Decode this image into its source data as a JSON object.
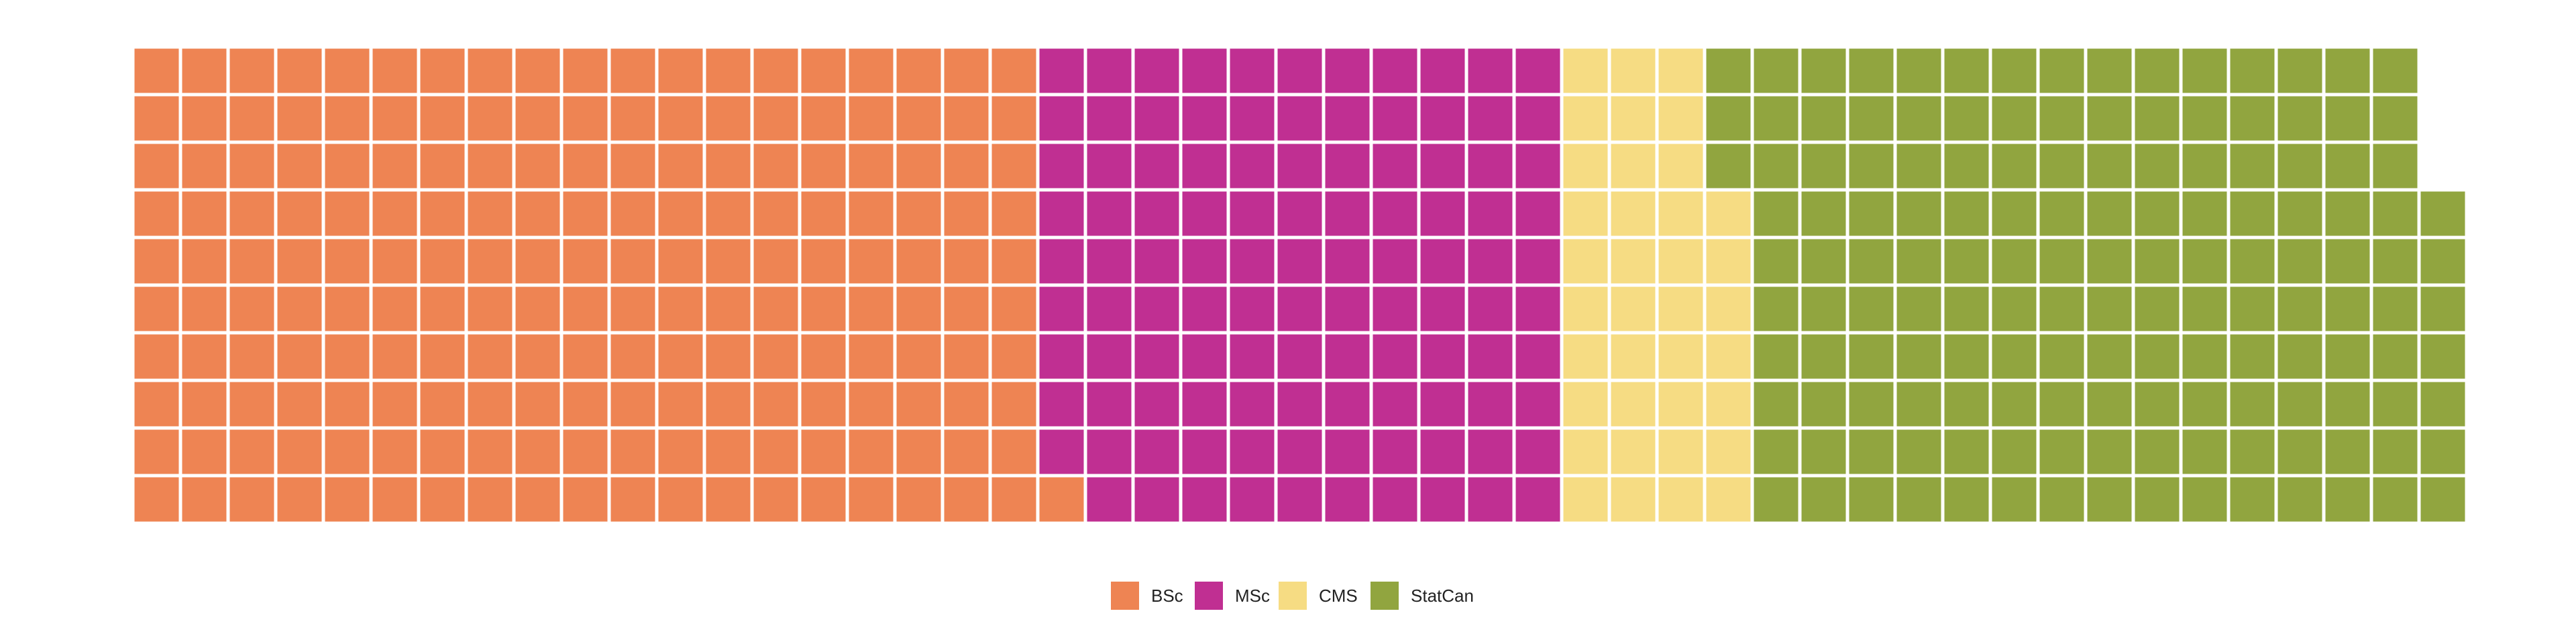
{
  "chart_data": {
    "type": "waffle",
    "rows": 10,
    "fill_order": "column-major, bottom-to-top, left-to-right",
    "title": "",
    "xlabel": "",
    "ylabel": "",
    "grid": false,
    "legend_position": "bottom-center",
    "categories": [
      "BSc",
      "MSc",
      "CMS",
      "StatCan"
    ],
    "values": [
      191,
      109,
      37,
      150
    ],
    "colors": [
      "#EE8453",
      "#C02F92",
      "#F6DC83",
      "#91A53F"
    ],
    "cell_border_color": "#ffffff"
  }
}
